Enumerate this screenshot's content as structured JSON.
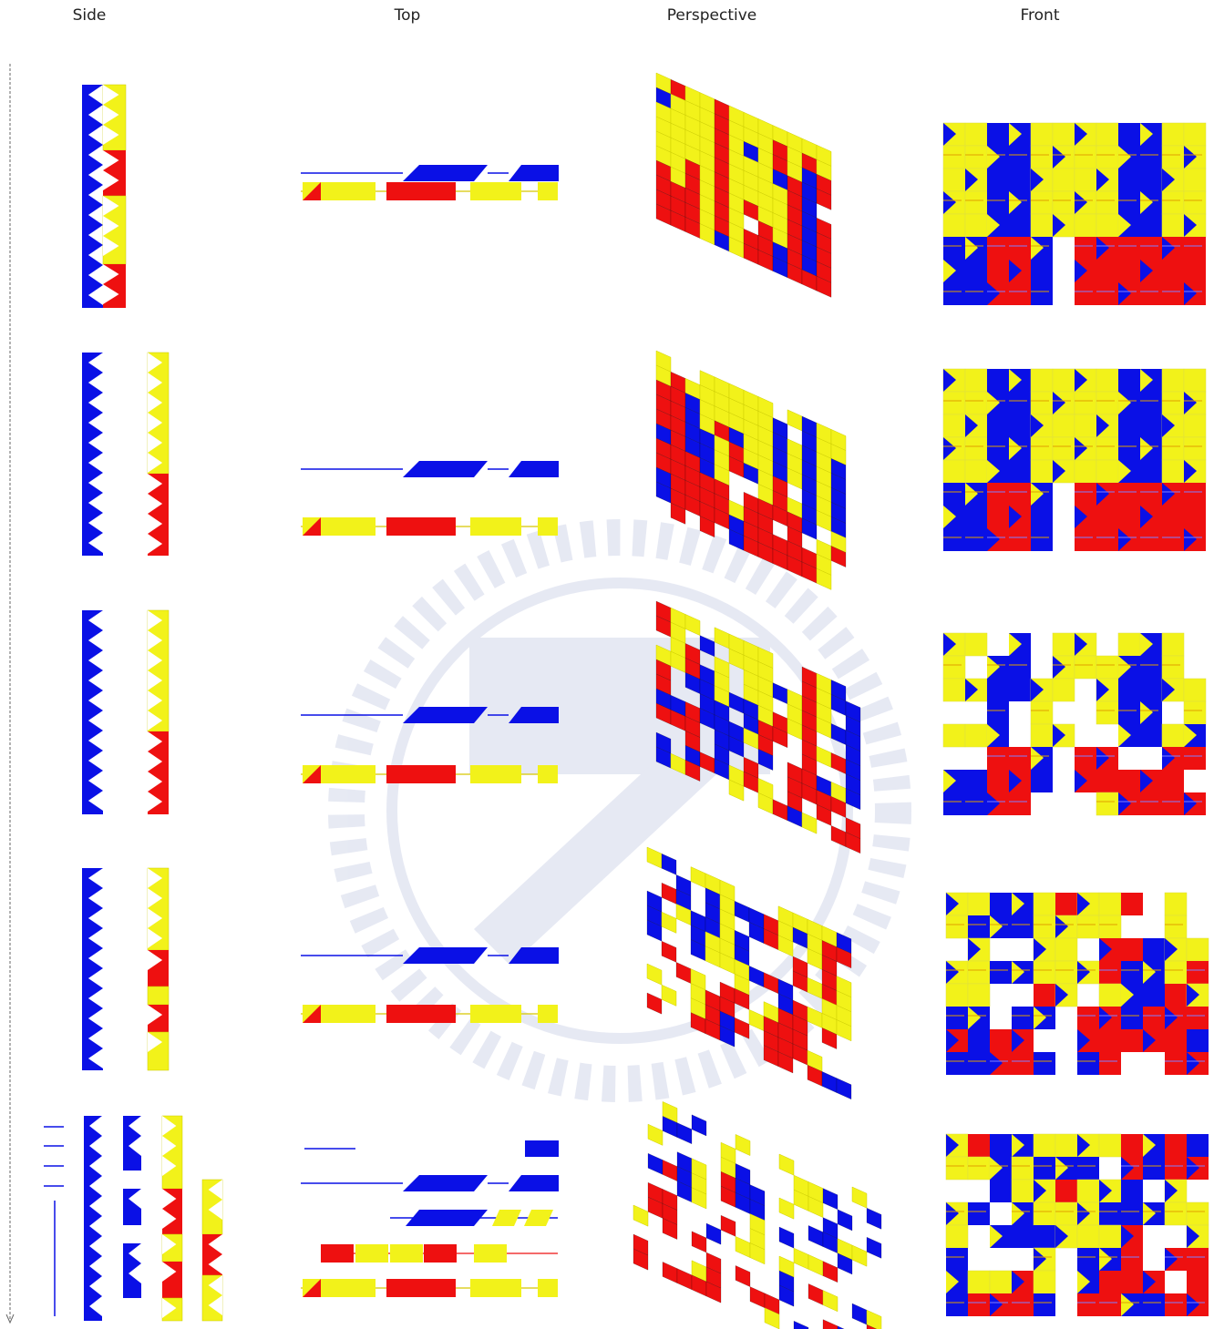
{
  "headers": {
    "side": "Side",
    "top": "Top",
    "perspective": "Perspective",
    "front": "Front"
  }
}
